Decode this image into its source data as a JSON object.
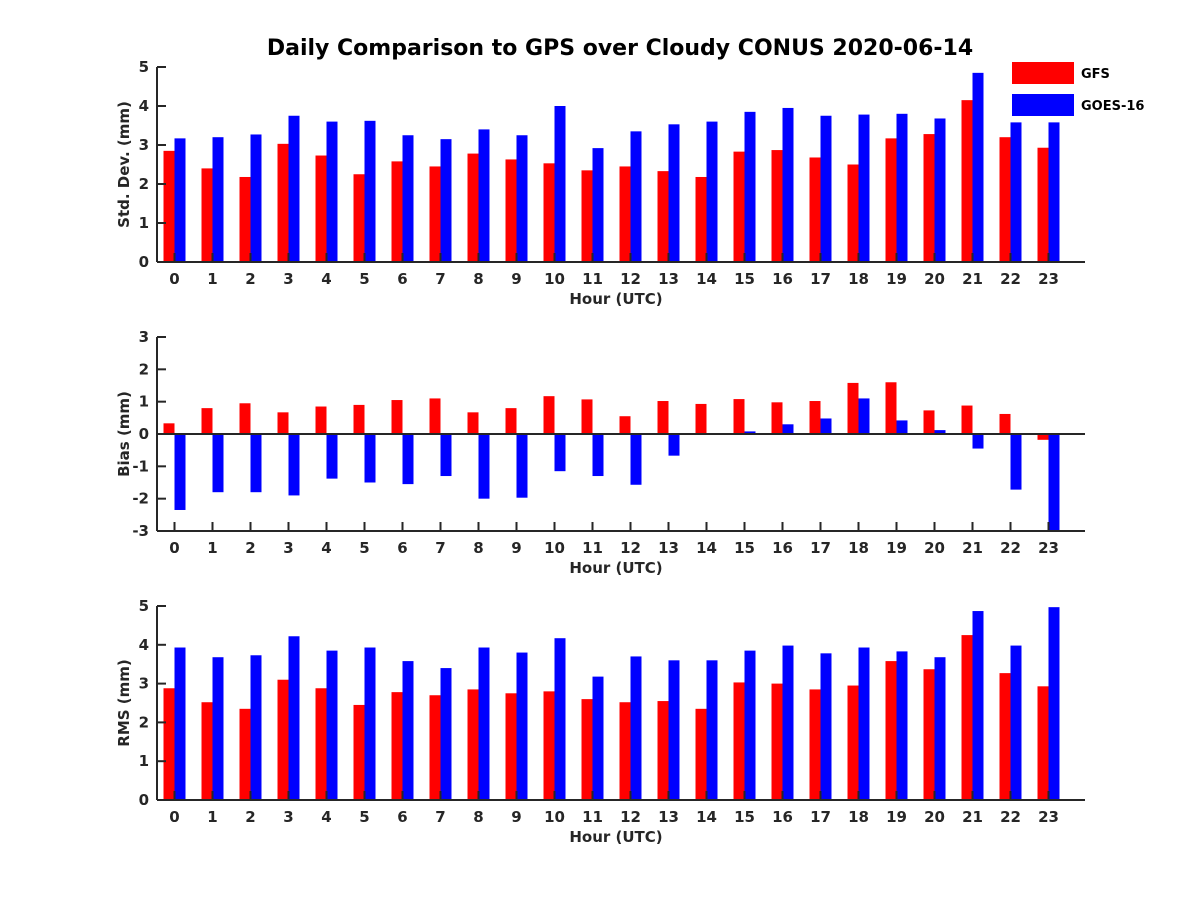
{
  "title": "Daily Comparison to GPS over Cloudy CONUS 2020-06-14",
  "colors": {
    "GFS": "#ff0000",
    "GOES-16": "#0000ff",
    "axis": "#262626"
  },
  "chart_data": [
    {
      "type": "bar",
      "xlabel": "Hour (UTC)",
      "ylabel": "Std. Dev. (mm)",
      "ylim": [
        0,
        5
      ],
      "yticks": [
        0,
        1,
        2,
        3,
        4,
        5
      ],
      "categories": [
        "0",
        "1",
        "2",
        "3",
        "4",
        "5",
        "6",
        "7",
        "8",
        "9",
        "10",
        "11",
        "12",
        "13",
        "14",
        "15",
        "16",
        "17",
        "18",
        "19",
        "20",
        "21",
        "22",
        "23"
      ],
      "legend": "top-right",
      "series": [
        {
          "name": "GFS",
          "color": "#ff0000",
          "values": [
            2.85,
            2.4,
            2.18,
            3.03,
            2.73,
            2.25,
            2.58,
            2.45,
            2.78,
            2.63,
            2.53,
            2.35,
            2.45,
            2.33,
            2.18,
            2.83,
            2.87,
            2.68,
            2.5,
            3.17,
            3.28,
            4.15,
            3.2,
            2.93
          ]
        },
        {
          "name": "GOES-16",
          "color": "#0000ff",
          "values": [
            3.17,
            3.2,
            3.27,
            3.75,
            3.6,
            3.62,
            3.25,
            3.15,
            3.4,
            3.25,
            4.0,
            2.92,
            3.35,
            3.53,
            3.6,
            3.85,
            3.95,
            3.75,
            3.78,
            3.8,
            3.68,
            4.85,
            3.58,
            3.58
          ]
        }
      ]
    },
    {
      "type": "bar",
      "xlabel": "Hour (UTC)",
      "ylabel": "Bias (mm)",
      "ylim": [
        -3,
        3
      ],
      "yticks": [
        -3,
        -2,
        -1,
        0,
        1,
        2,
        3
      ],
      "categories": [
        "0",
        "1",
        "2",
        "3",
        "4",
        "5",
        "6",
        "7",
        "8",
        "9",
        "10",
        "11",
        "12",
        "13",
        "14",
        "15",
        "16",
        "17",
        "18",
        "19",
        "20",
        "21",
        "22",
        "23"
      ],
      "series": [
        {
          "name": "GFS",
          "color": "#ff0000",
          "values": [
            0.33,
            0.8,
            0.95,
            0.67,
            0.85,
            0.9,
            1.05,
            1.1,
            0.67,
            0.8,
            1.17,
            1.07,
            0.55,
            1.02,
            0.93,
            1.08,
            0.98,
            1.02,
            1.58,
            1.6,
            0.73,
            0.88,
            0.62,
            -0.18
          ]
        },
        {
          "name": "GOES-16",
          "color": "#0000ff",
          "values": [
            -2.35,
            -1.8,
            -1.8,
            -1.9,
            -1.38,
            -1.5,
            -1.55,
            -1.3,
            -2.0,
            -1.97,
            -1.15,
            -1.3,
            -1.57,
            -0.67,
            0.0,
            0.08,
            0.3,
            0.48,
            1.1,
            0.42,
            0.12,
            -0.45,
            -1.72,
            -3.0
          ]
        }
      ]
    },
    {
      "type": "bar",
      "xlabel": "Hour (UTC)",
      "ylabel": "RMS (mm)",
      "ylim": [
        0,
        5
      ],
      "yticks": [
        0,
        1,
        2,
        3,
        4,
        5
      ],
      "categories": [
        "0",
        "1",
        "2",
        "3",
        "4",
        "5",
        "6",
        "7",
        "8",
        "9",
        "10",
        "11",
        "12",
        "13",
        "14",
        "15",
        "16",
        "17",
        "18",
        "19",
        "20",
        "21",
        "22",
        "23"
      ],
      "series": [
        {
          "name": "GFS",
          "color": "#ff0000",
          "values": [
            2.88,
            2.52,
            2.35,
            3.1,
            2.88,
            2.45,
            2.78,
            2.7,
            2.85,
            2.75,
            2.8,
            2.6,
            2.52,
            2.55,
            2.35,
            3.03,
            3.0,
            2.85,
            2.95,
            3.58,
            3.37,
            4.25,
            3.27,
            2.93
          ]
        },
        {
          "name": "GOES-16",
          "color": "#0000ff",
          "values": [
            3.93,
            3.68,
            3.73,
            4.22,
            3.85,
            3.93,
            3.58,
            3.4,
            3.93,
            3.8,
            4.17,
            3.18,
            3.7,
            3.6,
            3.6,
            3.85,
            3.98,
            3.78,
            3.93,
            3.83,
            3.68,
            4.87,
            3.98,
            4.97
          ]
        }
      ]
    }
  ]
}
